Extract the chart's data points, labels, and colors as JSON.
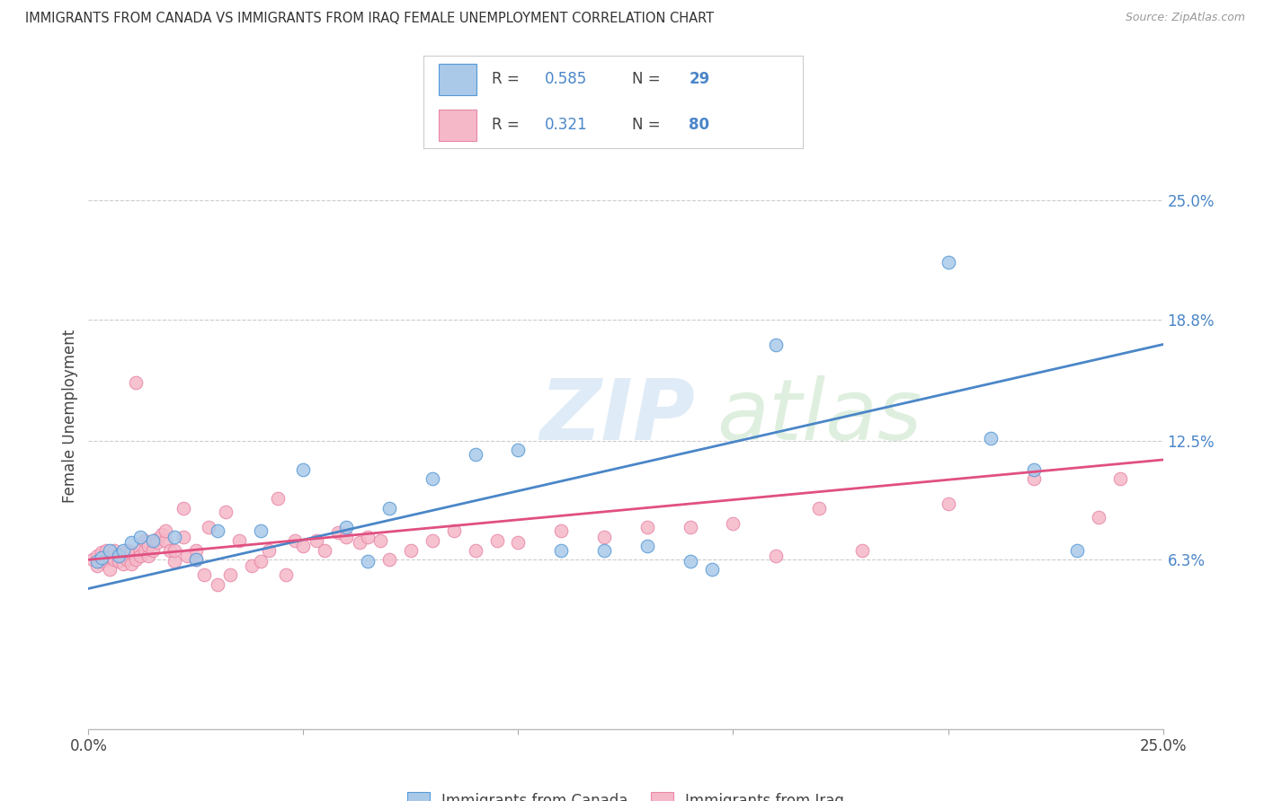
{
  "title": "IMMIGRANTS FROM CANADA VS IMMIGRANTS FROM IRAQ FEMALE UNEMPLOYMENT CORRELATION CHART",
  "source": "Source: ZipAtlas.com",
  "ylabel": "Female Unemployment",
  "right_yticks": [
    "25.0%",
    "18.8%",
    "12.5%",
    "6.3%"
  ],
  "right_ytick_vals": [
    0.25,
    0.188,
    0.125,
    0.063
  ],
  "xmin": 0.0,
  "xmax": 0.25,
  "ymin": -0.025,
  "ymax": 0.3,
  "canada_color": "#aac9e8",
  "iraq_color": "#f5b8c8",
  "canada_line_color": "#4a86c8",
  "iraq_line_color": "#e05080",
  "canada_R": 0.585,
  "canada_N": 29,
  "iraq_R": 0.321,
  "iraq_N": 80,
  "legend_label_canada": "Immigrants from Canada",
  "legend_label_iraq": "Immigrants from Iraq",
  "canada_scatter_x": [
    0.002,
    0.003,
    0.005,
    0.007,
    0.008,
    0.01,
    0.012,
    0.015,
    0.02,
    0.025,
    0.03,
    0.04,
    0.05,
    0.06,
    0.065,
    0.07,
    0.08,
    0.09,
    0.1,
    0.11,
    0.12,
    0.13,
    0.14,
    0.145,
    0.16,
    0.2,
    0.21,
    0.22,
    0.23
  ],
  "canada_scatter_y": [
    0.062,
    0.064,
    0.068,
    0.065,
    0.068,
    0.072,
    0.075,
    0.073,
    0.075,
    0.063,
    0.078,
    0.078,
    0.11,
    0.08,
    0.062,
    0.09,
    0.105,
    0.118,
    0.12,
    0.068,
    0.068,
    0.07,
    0.062,
    0.058,
    0.175,
    0.218,
    0.126,
    0.11,
    0.068
  ],
  "iraq_scatter_x": [
    0.001,
    0.002,
    0.002,
    0.003,
    0.003,
    0.004,
    0.004,
    0.005,
    0.005,
    0.006,
    0.006,
    0.007,
    0.007,
    0.008,
    0.008,
    0.009,
    0.009,
    0.01,
    0.01,
    0.011,
    0.011,
    0.012,
    0.012,
    0.013,
    0.013,
    0.014,
    0.014,
    0.015,
    0.016,
    0.016,
    0.017,
    0.018,
    0.018,
    0.019,
    0.02,
    0.02,
    0.022,
    0.022,
    0.023,
    0.025,
    0.025,
    0.027,
    0.028,
    0.03,
    0.032,
    0.033,
    0.035,
    0.038,
    0.04,
    0.042,
    0.044,
    0.046,
    0.048,
    0.05,
    0.053,
    0.055,
    0.058,
    0.06,
    0.063,
    0.065,
    0.068,
    0.07,
    0.075,
    0.08,
    0.085,
    0.09,
    0.095,
    0.1,
    0.11,
    0.12,
    0.13,
    0.14,
    0.15,
    0.16,
    0.17,
    0.18,
    0.2,
    0.22,
    0.235,
    0.24
  ],
  "iraq_scatter_y": [
    0.063,
    0.06,
    0.065,
    0.062,
    0.067,
    0.063,
    0.068,
    0.058,
    0.065,
    0.063,
    0.068,
    0.062,
    0.066,
    0.061,
    0.065,
    0.063,
    0.068,
    0.061,
    0.067,
    0.063,
    0.155,
    0.068,
    0.065,
    0.068,
    0.073,
    0.065,
    0.07,
    0.068,
    0.074,
    0.072,
    0.076,
    0.073,
    0.078,
    0.068,
    0.062,
    0.068,
    0.09,
    0.075,
    0.065,
    0.063,
    0.068,
    0.055,
    0.08,
    0.05,
    0.088,
    0.055,
    0.073,
    0.06,
    0.062,
    0.068,
    0.095,
    0.055,
    0.073,
    0.07,
    0.073,
    0.068,
    0.077,
    0.075,
    0.072,
    0.075,
    0.073,
    0.063,
    0.068,
    0.073,
    0.078,
    0.068,
    0.073,
    0.072,
    0.078,
    0.075,
    0.08,
    0.08,
    0.082,
    0.065,
    0.09,
    0.068,
    0.092,
    0.105,
    0.085,
    0.105
  ]
}
